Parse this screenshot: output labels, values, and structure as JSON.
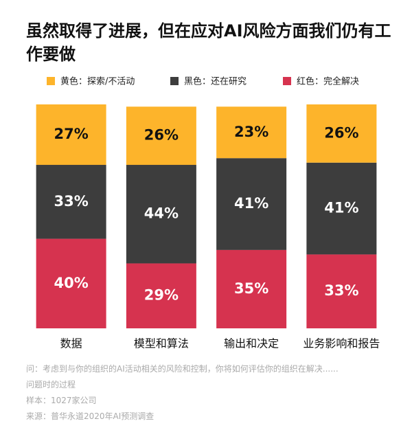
{
  "chart_data": {
    "type": "bar",
    "stacked": true,
    "title": "虽然取得了进展，但在应对AI风险方面我们仍有工作要做",
    "categories": [
      "数据",
      "模型和算法",
      "输出和决定",
      "业务影响和报告"
    ],
    "series": [
      {
        "name": "红色：完全解决",
        "color": "#d6334f",
        "label_color": "#ffffff",
        "values": [
          40,
          29,
          35,
          33
        ],
        "value_labels": [
          "40%",
          "29%",
          "35%",
          "33%"
        ]
      },
      {
        "name": "黑色：还在研究",
        "color": "#3d3d3d",
        "label_color": "#ffffff",
        "values": [
          33,
          44,
          41,
          41
        ],
        "value_labels": [
          "33%",
          "44%",
          "41%",
          "41%"
        ]
      },
      {
        "name": "黄色：探索/不活动",
        "color": "#fdb42b",
        "label_color": "#111111",
        "values": [
          27,
          26,
          23,
          26
        ],
        "value_labels": [
          "27%",
          "26%",
          "23%",
          "26%"
        ]
      }
    ],
    "ylim": [
      0,
      100
    ],
    "legend_order": [
      2,
      1,
      0
    ],
    "footnotes": [
      "问：考虑到与你的组织的AI活动相关的风险和控制，你将如何评估你的组织在解决......",
      "问题时的过程",
      "样本：1027家公司",
      "来源：普华永道2020年AI预测调查"
    ]
  }
}
